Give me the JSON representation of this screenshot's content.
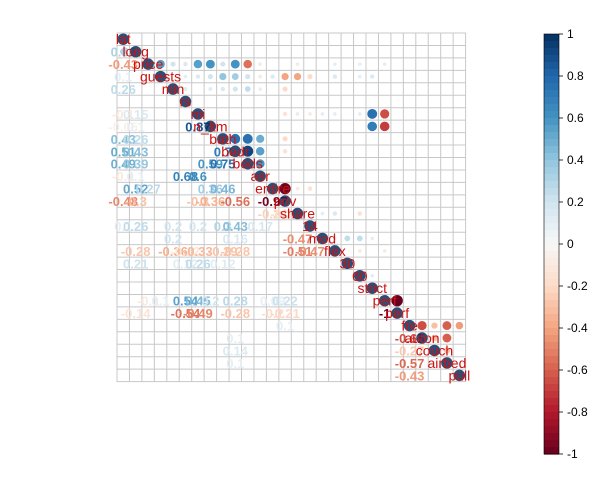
{
  "chart_data": {
    "type": "heatmap",
    "variables": [
      "lat",
      "long",
      "price",
      "guests",
      "min",
      "rs",
      "mi",
      "n_ltm",
      "bath",
      "bedr",
      "beds",
      "asr",
      "entire",
      "priv",
      "share",
      "14",
      "mod",
      "flex",
      "30",
      "60",
      "strict",
      "perf",
      "cancel_perf",
      "fre",
      "auton",
      "couch",
      "airbed",
      "pull"
    ],
    "display_labels": [
      "lat",
      "long",
      "price",
      "guests",
      "min",
      "rs",
      "mi",
      "n_ltm",
      "bath",
      "bedr",
      "beds",
      "asr",
      "entire",
      "priv",
      "share",
      "14",
      "mod",
      "flex",
      "30",
      "60",
      "strict",
      "perf",
      "perf",
      "fre",
      "auton",
      "couch",
      "airbed",
      "pull"
    ],
    "upper": [
      [
        1,
        0,
        0.32
      ],
      [
        2,
        3,
        0.55
      ],
      [
        2,
        4,
        0.2
      ],
      [
        2,
        5,
        0.15
      ],
      [
        2,
        6,
        0.55
      ],
      [
        2,
        7,
        0.6
      ],
      [
        2,
        8,
        0.2
      ],
      [
        2,
        9,
        0.6
      ],
      [
        2,
        10,
        -0.55
      ],
      [
        2,
        11,
        -0.1
      ],
      [
        2,
        14,
        -0.1
      ],
      [
        2,
        17,
        0.1
      ],
      [
        2,
        19,
        0.1
      ],
      [
        2,
        21,
        0.1
      ],
      [
        3,
        5,
        0.1
      ],
      [
        3,
        6,
        0.15
      ],
      [
        3,
        7,
        0.2
      ],
      [
        3,
        8,
        0.4
      ],
      [
        3,
        9,
        0.35
      ],
      [
        3,
        10,
        0.2
      ],
      [
        3,
        11,
        -0.1
      ],
      [
        3,
        12,
        0.15
      ],
      [
        3,
        13,
        -0.4
      ],
      [
        3,
        14,
        -0.4
      ],
      [
        3,
        15,
        -0.2
      ],
      [
        3,
        17,
        0.15
      ],
      [
        3,
        19,
        0.1
      ],
      [
        3,
        20,
        0.15
      ],
      [
        4,
        5,
        0.12
      ],
      [
        4,
        7,
        0.12
      ],
      [
        4,
        8,
        0.15
      ],
      [
        4,
        9,
        0.2
      ],
      [
        4,
        10,
        0.25
      ],
      [
        4,
        11,
        0.1
      ],
      [
        4,
        13,
        -0.2
      ],
      [
        6,
        13,
        -0.15
      ],
      [
        6,
        14,
        0.1
      ],
      [
        6,
        15,
        -0.1
      ],
      [
        6,
        16,
        0.1
      ],
      [
        6,
        17,
        0.1
      ],
      [
        6,
        19,
        0.1
      ],
      [
        6,
        20,
        0.75
      ],
      [
        6,
        21,
        -0.65
      ],
      [
        7,
        20,
        0.7
      ],
      [
        7,
        21,
        -0.7
      ],
      [
        8,
        9,
        0.75
      ],
      [
        8,
        10,
        0.75
      ],
      [
        8,
        11,
        0.5
      ],
      [
        8,
        13,
        -0.2
      ],
      [
        9,
        10,
        0.92
      ],
      [
        9,
        11,
        0.55
      ],
      [
        9,
        13,
        -0.15
      ],
      [
        10,
        11,
        0.6
      ],
      [
        12,
        13,
        -0.97
      ],
      [
        12,
        14,
        -0.1
      ],
      [
        12,
        15,
        -0.15
      ],
      [
        14,
        16,
        0.1
      ],
      [
        14,
        17,
        0.15
      ],
      [
        14,
        19,
        -0.15
      ],
      [
        16,
        17,
        0.1
      ],
      [
        16,
        18,
        0.25
      ],
      [
        16,
        19,
        0.25
      ],
      [
        16,
        20,
        0.1
      ],
      [
        17,
        19,
        -0.1
      ],
      [
        17,
        21,
        -0.1
      ],
      [
        19,
        20,
        0.1
      ],
      [
        21,
        22,
        -1
      ],
      [
        23,
        24,
        -0.65
      ],
      [
        23,
        25,
        -0.3
      ],
      [
        23,
        26,
        -0.6
      ],
      [
        23,
        27,
        -0.43
      ],
      [
        24,
        25,
        -0.3
      ],
      [
        24,
        26,
        -0.6
      ],
      [
        25,
        26,
        -0.3
      ]
    ],
    "lower_labels": [
      [
        1,
        0,
        "0.32"
      ],
      [
        2,
        0,
        "-0.43"
      ],
      [
        3,
        0,
        "0.1"
      ],
      [
        4,
        0,
        "0.26"
      ],
      [
        6,
        0,
        "-0.1"
      ],
      [
        6,
        1,
        "0.15"
      ],
      [
        7,
        0,
        "-0.05"
      ],
      [
        7,
        1,
        "0.1"
      ],
      [
        7,
        6,
        "0.87"
      ],
      [
        8,
        0,
        "0.43"
      ],
      [
        8,
        1,
        "0.26"
      ],
      [
        9,
        0,
        "0.51"
      ],
      [
        9,
        1,
        "0.43"
      ],
      [
        9,
        8,
        "0.7"
      ],
      [
        10,
        0,
        "0.49"
      ],
      [
        10,
        1,
        "0.39"
      ],
      [
        10,
        7,
        "0.59"
      ],
      [
        10,
        8,
        "0.75"
      ],
      [
        11,
        0,
        "-0.1"
      ],
      [
        11,
        1,
        "0.1"
      ],
      [
        11,
        5,
        "0.68"
      ],
      [
        11,
        6,
        "0.6"
      ],
      [
        12,
        1,
        "0.52"
      ],
      [
        12,
        2,
        "0.27"
      ],
      [
        12,
        7,
        "0.36"
      ],
      [
        12,
        8,
        "0.46"
      ],
      [
        13,
        0,
        "-0.48"
      ],
      [
        13,
        1,
        "-0.3"
      ],
      [
        13,
        6,
        "-0.3"
      ],
      [
        13,
        7,
        "-0.36"
      ],
      [
        13,
        9,
        "-0.56"
      ],
      [
        13,
        12,
        "-0.97"
      ],
      [
        14,
        12,
        "-0.24"
      ],
      [
        14,
        13,
        "-0.18"
      ],
      [
        15,
        0,
        "0.1"
      ],
      [
        15,
        1,
        "0.26"
      ],
      [
        15,
        4,
        "0.2"
      ],
      [
        15,
        6,
        "0.2"
      ],
      [
        15,
        8,
        "0.3"
      ],
      [
        15,
        9,
        "0.43"
      ],
      [
        15,
        11,
        "0.17"
      ],
      [
        16,
        4,
        "0.2"
      ],
      [
        16,
        9,
        "0.16"
      ],
      [
        16,
        14,
        "-0.47"
      ],
      [
        17,
        1,
        "-0.28"
      ],
      [
        17,
        4,
        "-0.36"
      ],
      [
        17,
        5,
        "-0.12"
      ],
      [
        17,
        6,
        "-0.33"
      ],
      [
        17,
        8,
        "-0.29"
      ],
      [
        17,
        9,
        "-0.28"
      ],
      [
        17,
        14,
        "-0.51"
      ],
      [
        17,
        15,
        "-0.47"
      ],
      [
        18,
        1,
        "0.21"
      ],
      [
        18,
        5,
        "0.12"
      ],
      [
        18,
        6,
        "0.26"
      ],
      [
        18,
        8,
        "0.12"
      ],
      [
        21,
        2,
        "-0.1"
      ],
      [
        21,
        3,
        "0.1"
      ],
      [
        21,
        5,
        "0.54"
      ],
      [
        21,
        6,
        "0.45"
      ],
      [
        21,
        7,
        "0.2"
      ],
      [
        21,
        9,
        "0.28"
      ],
      [
        21,
        12,
        "0.09"
      ],
      [
        21,
        13,
        "0.22"
      ],
      [
        22,
        1,
        "-0.14"
      ],
      [
        22,
        5,
        "-0.54"
      ],
      [
        22,
        6,
        "-0.49"
      ],
      [
        22,
        9,
        "-0.28"
      ],
      [
        22,
        12,
        "-0.2"
      ],
      [
        22,
        13,
        "-0.21"
      ],
      [
        22,
        21,
        "-1"
      ],
      [
        23,
        13,
        "0.1"
      ],
      [
        24,
        9,
        "0.1"
      ],
      [
        24,
        23,
        "-0.65"
      ],
      [
        25,
        9,
        "0.14"
      ],
      [
        25,
        23,
        "-0.27"
      ],
      [
        26,
        9,
        "0.1"
      ],
      [
        26,
        23,
        "-0.57"
      ],
      [
        27,
        23,
        "-0.43"
      ]
    ],
    "colorbar": {
      "min": -1,
      "max": 1,
      "ticks": [
        "1",
        "0.8",
        "0.6",
        "0.4",
        "0.2",
        "0",
        "-0.2",
        "-0.4",
        "-0.6",
        "-0.8",
        "-1"
      ]
    },
    "colors": {
      "negative": "#67001F",
      "mid": "#F7F7F7",
      "positive": "#053061",
      "label": "#CC1111",
      "grid": "#C8C8C8"
    }
  }
}
